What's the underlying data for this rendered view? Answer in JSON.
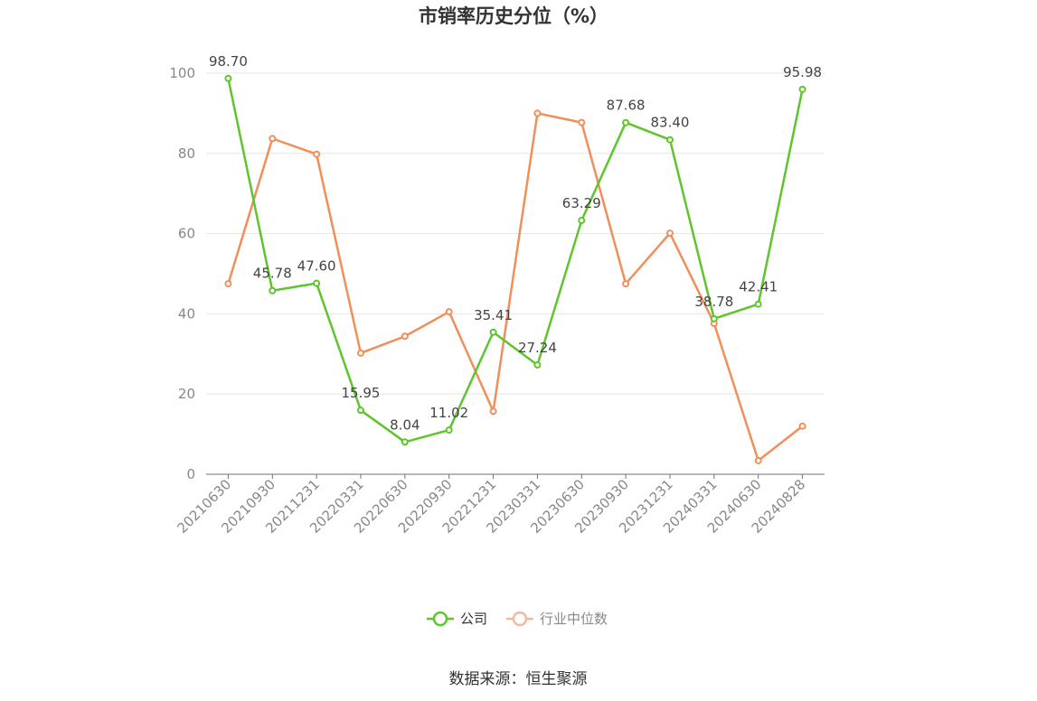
{
  "chart_data": {
    "type": "line",
    "title": "市销率历史分位（%）",
    "xlabel": "",
    "ylabel": "",
    "ylim": [
      0,
      100
    ],
    "yticks": [
      0,
      20,
      40,
      60,
      80,
      100
    ],
    "categories": [
      "20210630",
      "20210930",
      "20211231",
      "20220331",
      "20220630",
      "20220930",
      "20221231",
      "20230331",
      "20230630",
      "20230930",
      "20231231",
      "20240331",
      "20240630",
      "20240828"
    ],
    "series": [
      {
        "name": "公司",
        "color": "#5ec52c",
        "values": [
          98.7,
          45.78,
          47.6,
          15.95,
          8.04,
          11.02,
          35.41,
          27.24,
          63.29,
          87.68,
          83.4,
          38.78,
          42.41,
          95.98
        ],
        "labels": [
          "98.70",
          "45.78",
          "47.60",
          "15.95",
          "8.04",
          "11.02",
          "35.41",
          "27.24",
          "63.29",
          "87.68",
          "83.40",
          "38.78",
          "42.41",
          "95.98"
        ]
      },
      {
        "name": "行业中位数",
        "color": "#f28e5a",
        "values": [
          47.5,
          83.7,
          79.8,
          30.2,
          34.4,
          40.5,
          15.7,
          90.0,
          87.7,
          47.5,
          60.1,
          37.6,
          3.4,
          12.0
        ]
      }
    ],
    "grid": true,
    "legend_position": "bottom",
    "source": "数据来源：恒生聚源"
  }
}
